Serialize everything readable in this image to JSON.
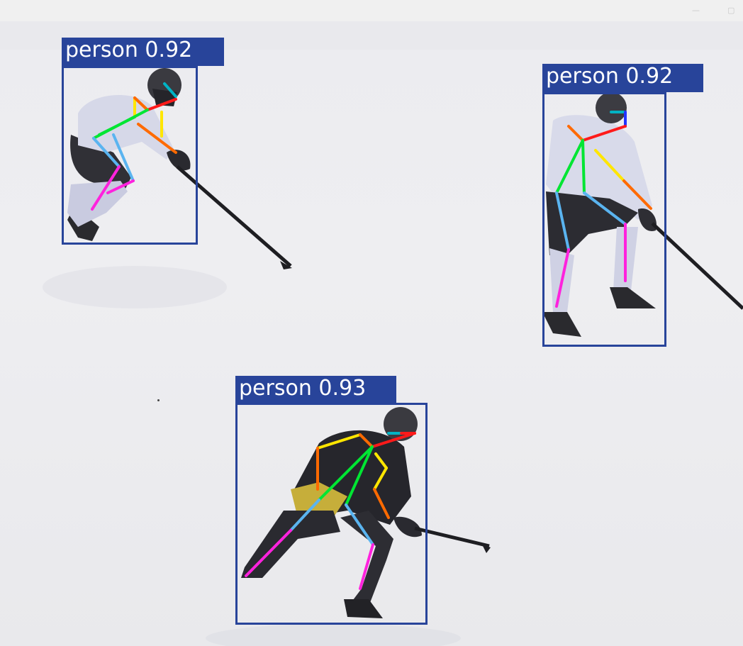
{
  "window": {
    "minimize_icon": "minimize-icon",
    "restore_icon": "restore-icon",
    "minimize_glyph": "—",
    "restore_glyph": "▢"
  },
  "detections": [
    {
      "label": "person",
      "confidence": "0.92",
      "color": "#28449a"
    },
    {
      "label": "person",
      "confidence": "0.92",
      "color": "#28449a"
    },
    {
      "label": "person",
      "confidence": "0.93",
      "color": "#28449a"
    }
  ],
  "skeleton_colors": {
    "head": "#00b3c4",
    "face": "#ff1a1a",
    "arm_upper": "#ffe600",
    "arm_lower": "#ff6a00",
    "torso": "#00e633",
    "leg_upper": "#5ab4f0",
    "leg_lower": "#ff22dd",
    "box": "#28449a"
  }
}
